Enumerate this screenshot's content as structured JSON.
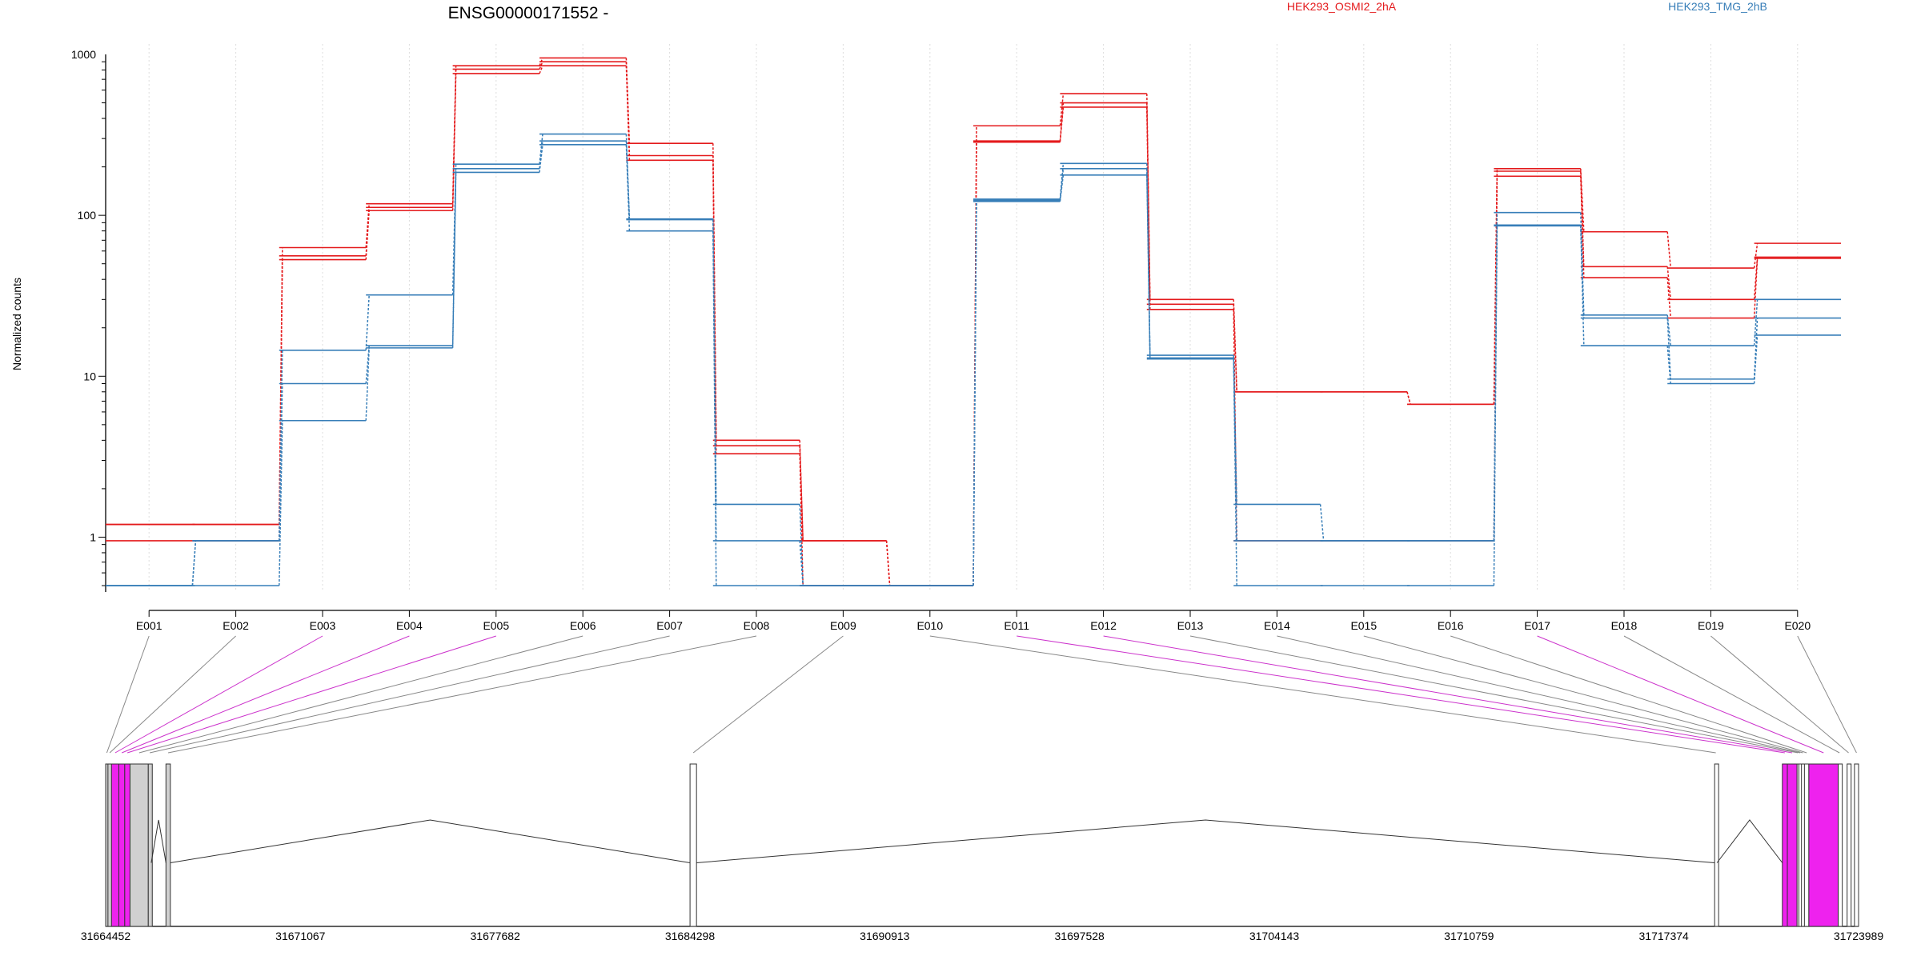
{
  "title": "ENSG00000171552 -",
  "legend": [
    {
      "label": "HEK293_OSMI2_2hA",
      "color": "#e41a1c"
    },
    {
      "label": "HEK293_TMG_2hB",
      "color": "#377eb8"
    }
  ],
  "colors": {
    "condition_a": "#e41a1c",
    "condition_b": "#377eb8",
    "significant_exon": "#ee22ee",
    "exon_fill": "#d0d0d0",
    "link": "#888888",
    "significant_link": "#cc33cc"
  },
  "chart_data": [
    {
      "type": "line",
      "ylabel": "Normalized counts",
      "yscale": "log",
      "ylim": [
        0.5,
        1000
      ],
      "yticks": [
        "1",
        "10",
        "100",
        "1000"
      ],
      "categories": [
        "E001",
        "E002",
        "E003",
        "E004",
        "E005",
        "E006",
        "E007",
        "E008",
        "E009",
        "E010",
        "E011",
        "E012",
        "E013",
        "E014",
        "E015",
        "E016",
        "E017",
        "E018",
        "E019",
        "E020"
      ],
      "significant_exons": [
        "E003",
        "E004",
        "E005",
        "E011",
        "E012",
        "E017"
      ],
      "series": [
        {
          "group": "a",
          "values": [
            1.2,
            1.2,
            63,
            118,
            850,
            950,
            280,
            4.0,
            0.95,
            0.5,
            360,
            570,
            30,
            8.0,
            8.0,
            6.7,
            195,
            79,
            47,
            67
          ]
        },
        {
          "group": "a",
          "values": [
            1.2,
            1.2,
            56,
            112,
            810,
            900,
            235,
            3.7,
            0.95,
            0.5,
            290,
            500,
            28,
            8.0,
            8.0,
            6.7,
            188,
            48,
            30,
            55
          ]
        },
        {
          "group": "a",
          "values": [
            0.95,
            0.95,
            53,
            107,
            760,
            850,
            220,
            3.3,
            0.5,
            0.5,
            285,
            470,
            26,
            0.95,
            0.95,
            0.95,
            175,
            41,
            23,
            54
          ]
        },
        {
          "group": "b",
          "values": [
            0.5,
            0.95,
            14.5,
            32,
            208,
            320,
            95,
            1.6,
            0.5,
            0.5,
            126,
            210,
            13.5,
            1.6,
            0.95,
            0.95,
            104,
            24,
            15.5,
            30
          ]
        },
        {
          "group": "b",
          "values": [
            0.5,
            0.95,
            9.0,
            15.5,
            195,
            290,
            94,
            0.95,
            0.5,
            0.5,
            124,
            195,
            13,
            0.95,
            0.95,
            0.95,
            87,
            23,
            9.6,
            23
          ]
        },
        {
          "group": "b",
          "values": [
            0.5,
            0.5,
            5.3,
            15,
            185,
            275,
            80,
            0.5,
            0.5,
            0.5,
            122,
            178,
            12.8,
            0.5,
            0.5,
            0.5,
            86,
            15.5,
            9.0,
            18
          ]
        }
      ]
    },
    {
      "type": "gene-model",
      "xtick_labels": [
        "31664452",
        "31671067",
        "31677682",
        "31684298",
        "31690913",
        "31697528",
        "31704143",
        "31710759",
        "31717374",
        "31723989"
      ],
      "xlim": [
        31664452,
        31723989
      ],
      "exons": [
        {
          "id": "E001",
          "start": 31664452,
          "end": 31664530,
          "significant": false
        },
        {
          "id": "E002",
          "start": 31664530,
          "end": 31664650,
          "significant": false
        },
        {
          "id": "E003",
          "start": 31664650,
          "end": 31664900,
          "significant": true
        },
        {
          "id": "E004",
          "start": 31664900,
          "end": 31665100,
          "significant": true
        },
        {
          "id": "E005",
          "start": 31665100,
          "end": 31665280,
          "significant": true
        },
        {
          "id": "E006",
          "start": 31665280,
          "end": 31665900,
          "significant": false
        },
        {
          "id": "E007",
          "start": 31665900,
          "end": 31666000,
          "significant": false
        },
        {
          "id": "E008",
          "start": 31666500,
          "end": 31666650,
          "significant": false
        },
        {
          "id": "E009",
          "start": 31684300,
          "end": 31684520,
          "significant": false
        },
        {
          "id": "E010",
          "start": 31719100,
          "end": 31719180,
          "significant": false
        },
        {
          "id": "E011",
          "start": 31721400,
          "end": 31721570,
          "significant": true
        },
        {
          "id": "E012",
          "start": 31721570,
          "end": 31721900,
          "significant": true
        },
        {
          "id": "E013",
          "start": 31721900,
          "end": 31721960,
          "significant": false
        },
        {
          "id": "E014",
          "start": 31721960,
          "end": 31722050,
          "significant": false
        },
        {
          "id": "E015",
          "start": 31722050,
          "end": 31722150,
          "significant": false
        },
        {
          "id": "E016",
          "start": 31722150,
          "end": 31722300,
          "significant": false
        },
        {
          "id": "E017",
          "start": 31722300,
          "end": 31723300,
          "significant": true
        },
        {
          "id": "E018",
          "start": 31723300,
          "end": 31723380,
          "significant": false
        },
        {
          "id": "E019",
          "start": 31723600,
          "end": 31723700,
          "significant": false
        },
        {
          "id": "E020",
          "start": 31723850,
          "end": 31723989,
          "significant": false
        }
      ]
    }
  ]
}
